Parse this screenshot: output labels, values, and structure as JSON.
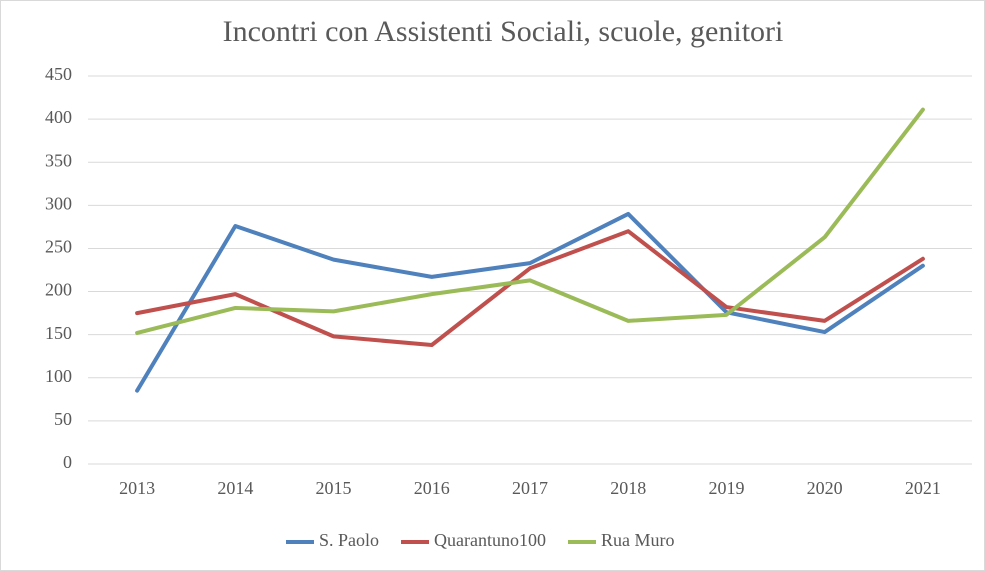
{
  "chart_data": {
    "type": "line",
    "title": "Incontri con Assistenti Sociali, scuole, genitori",
    "categories": [
      "2013",
      "2014",
      "2015",
      "2016",
      "2017",
      "2018",
      "2019",
      "2020",
      "2021"
    ],
    "series": [
      {
        "name": "S. Paolo",
        "color": "#4f81bd",
        "values": [
          85,
          276,
          237,
          217,
          233,
          290,
          176,
          153,
          230
        ]
      },
      {
        "name": "Quarantuno100",
        "color": "#c0504d",
        "values": [
          175,
          197,
          148,
          138,
          227,
          270,
          182,
          166,
          238
        ]
      },
      {
        "name": "Rua Muro",
        "color": "#9bbb59",
        "values": [
          152,
          181,
          177,
          197,
          213,
          166,
          173,
          263,
          411
        ]
      }
    ],
    "ylim": [
      0,
      450
    ],
    "yticks": [
      0,
      50,
      100,
      150,
      200,
      250,
      300,
      350,
      400,
      450
    ],
    "grid": true,
    "legend": "bottom"
  }
}
